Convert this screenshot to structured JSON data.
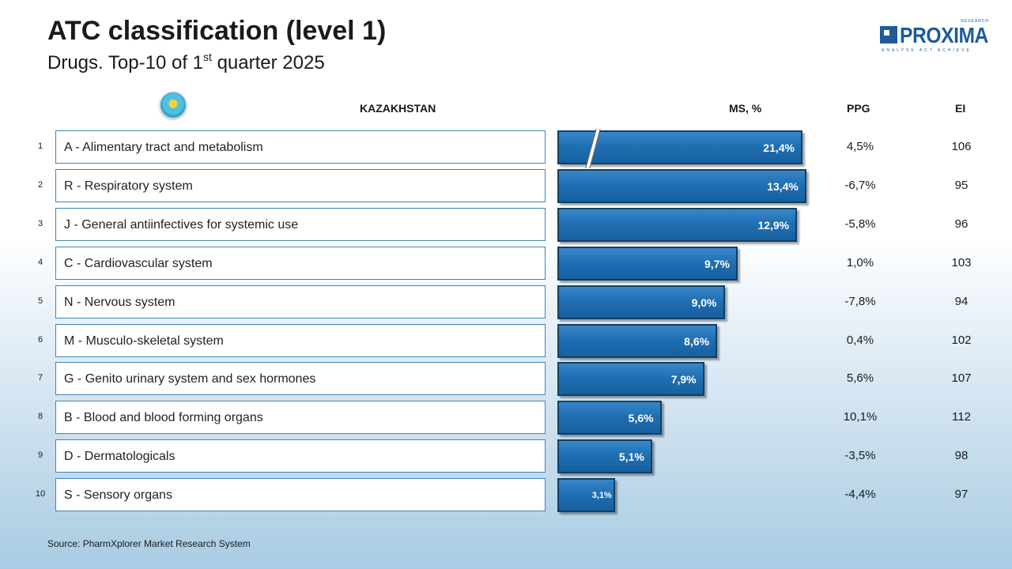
{
  "title": "ATC classification (level 1)",
  "subtitle": {
    "main": "Drugs. Top-10 of 1",
    "sup": "st",
    "rest": " quarter 2025"
  },
  "logo": {
    "word": "PROXIMA",
    "research": "RESEARCH",
    "tagline": "ANALYSE ACT ACHIEVE",
    "icon": "kazakhstan-flag-icon"
  },
  "headers": {
    "country": "KAZAKHSTAN",
    "ms": "MS, %",
    "ppg": "PPG",
    "ei": "EI"
  },
  "colors": {
    "bar": "#1f6fb3",
    "box_border": "#3f86b8",
    "brand": "#1e5b9a"
  },
  "source": "Source: PharmXplorer Market Research System",
  "chart_data": {
    "type": "bar",
    "orientation": "horizontal",
    "axis_break_on_first_bar": true,
    "rows": [
      {
        "rank": "1",
        "category": "A - Alimentary tract and metabolism",
        "ms": 21.4,
        "ms_label": "21,4%",
        "ppg": "4,5%",
        "ei": "106"
      },
      {
        "rank": "2",
        "category": "R - Respiratory system",
        "ms": 13.4,
        "ms_label": "13,4%",
        "ppg": "-6,7%",
        "ei": "95"
      },
      {
        "rank": "3",
        "category": "J - General antiinfectives for systemic use",
        "ms": 12.9,
        "ms_label": "12,9%",
        "ppg": "-5,8%",
        "ei": "96"
      },
      {
        "rank": "4",
        "category": "C - Cardiovascular system",
        "ms": 9.7,
        "ms_label": "9,7%",
        "ppg": "1,0%",
        "ei": "103"
      },
      {
        "rank": "5",
        "category": "N - Nervous system",
        "ms": 9.0,
        "ms_label": "9,0%",
        "ppg": "-7,8%",
        "ei": "94"
      },
      {
        "rank": "6",
        "category": "M - Musculo-skeletal system",
        "ms": 8.6,
        "ms_label": "8,6%",
        "ppg": "0,4%",
        "ei": "102"
      },
      {
        "rank": "7",
        "category": "G - Genito urinary system and sex hormones",
        "ms": 7.9,
        "ms_label": "7,9%",
        "ppg": "5,6%",
        "ei": "107"
      },
      {
        "rank": "8",
        "category": "B - Blood and blood forming organs",
        "ms": 5.6,
        "ms_label": "5,6%",
        "ppg": "10,1%",
        "ei": "112"
      },
      {
        "rank": "9",
        "category": "D - Dermatologicals",
        "ms": 5.1,
        "ms_label": "5,1%",
        "ppg": "-3,5%",
        "ei": "98"
      },
      {
        "rank": "10",
        "category": "S - Sensory organs",
        "ms": 3.1,
        "ms_label": "3,1%",
        "ppg": "-4,4%",
        "ei": "97"
      }
    ]
  }
}
